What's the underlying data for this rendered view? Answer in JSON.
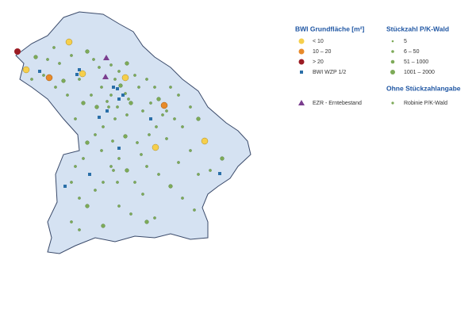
{
  "legend_size": {
    "title": "BWI Grundfläche [m²]",
    "items": [
      "< 10",
      "10 – 20",
      "> 20",
      "BWI WZP 1/2",
      "EZR - Erntebestand"
    ]
  },
  "legend_count": {
    "title": "Stückzahl P/K-Wald",
    "items": [
      "5",
      "6 – 50",
      "51 – 1000",
      "1001 – 2000"
    ]
  },
  "legend_other": {
    "title": "Ohne Stückzahlangabe",
    "items": [
      "Robinie P/K-Wald"
    ]
  }
}
